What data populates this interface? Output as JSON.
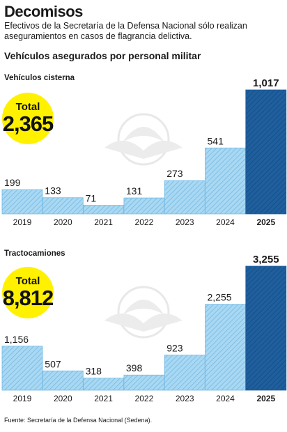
{
  "title": "Decomisos",
  "subtitle": "Efectivos de la Secretaría de la Defensa Nacional sólo realizan aseguramientos en casos de flagrancia delictiva.",
  "section_heading": "Vehículos asegurados por personal militar",
  "source": "Fuente: Secretaría de la Defensa Nacional (Sedena).",
  "colors": {
    "bar": "#a9d8f2",
    "bar_stripe": "#74b9e3",
    "bar_last": "#1f5f9e",
    "bar_last_stripe": "#164b82",
    "circle": "#fff100"
  },
  "chart_data": [
    {
      "type": "bar",
      "title": "Vehículos cisterna",
      "total_label": "Total",
      "total_value": "2,365",
      "categories": [
        "2019",
        "2020",
        "2021",
        "2022",
        "2023",
        "2024",
        "2025"
      ],
      "values": [
        199,
        133,
        71,
        131,
        273,
        541,
        1017
      ],
      "value_labels": [
        "199",
        "133",
        "71",
        "131",
        "273",
        "541",
        "1,017"
      ],
      "ylim": [
        0,
        1017
      ]
    },
    {
      "type": "bar",
      "title": "Tractocamiones",
      "total_label": "Total",
      "total_value": "8,812",
      "categories": [
        "2019",
        "2020",
        "2021",
        "2022",
        "2023",
        "2024",
        "2025"
      ],
      "values": [
        1156,
        507,
        318,
        398,
        923,
        2255,
        3255
      ],
      "value_labels": [
        "1,156",
        "507",
        "318",
        "398",
        "923",
        "2,255",
        "3,255"
      ],
      "ylim": [
        0,
        3255
      ]
    }
  ]
}
